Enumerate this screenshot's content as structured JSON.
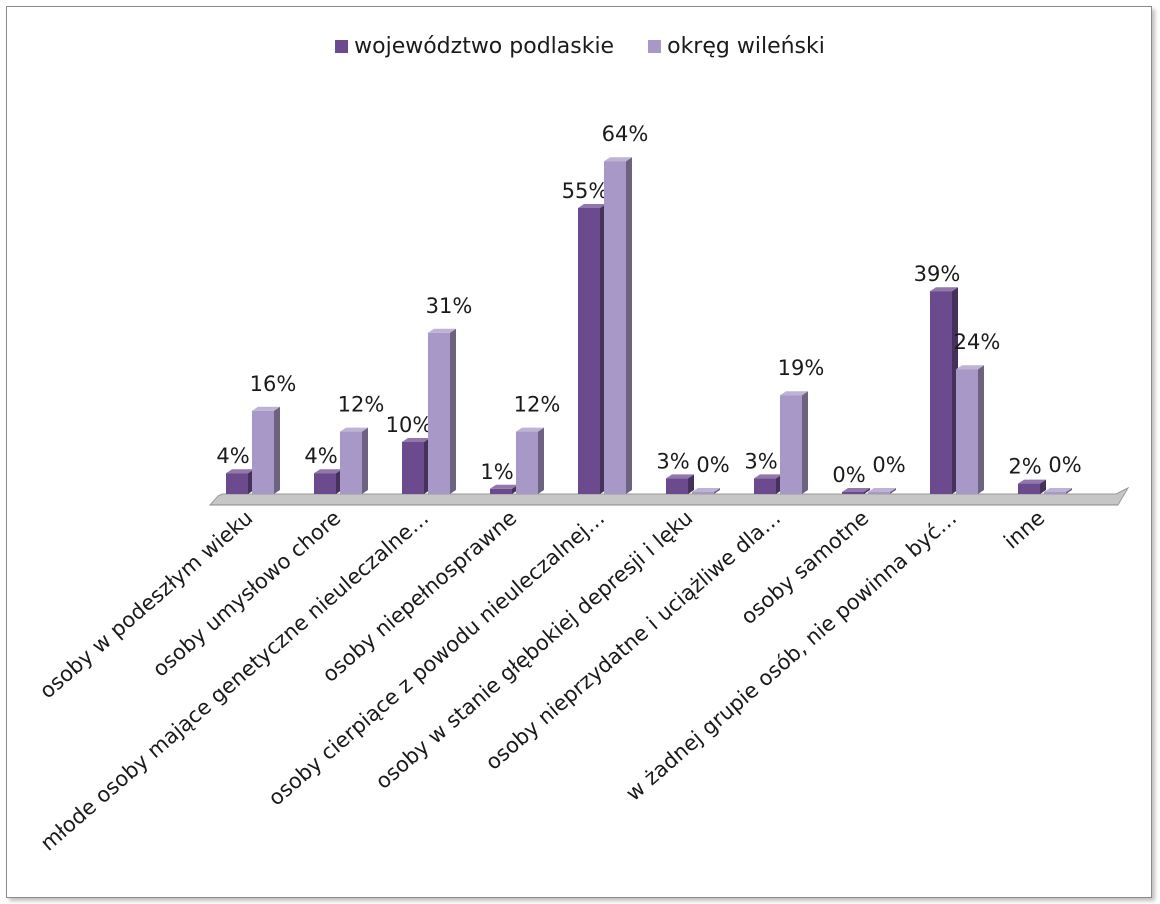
{
  "chart_data": {
    "type": "bar",
    "categories": [
      "osoby w podeszłym wieku",
      "osoby umysłowo chore",
      "młode osoby mające genetyczne nieuleczalne…",
      "osoby niepełnosprawne",
      "osoby cierpiące z powodu nieuleczalnej…",
      "osoby w stanie głębokiej depresji i lęku",
      "osoby nieprzydatne i uciążliwe dla…",
      "osoby samotne",
      "w żadnej grupie osób, nie powinna być…",
      "inne"
    ],
    "series": [
      {
        "name": "województwo podlaskie",
        "values": [
          4,
          4,
          10,
          1,
          55,
          3,
          3,
          0,
          39,
          2
        ],
        "labels": [
          "4%",
          "4%",
          "10%",
          "1%",
          "55%",
          "3%",
          "3%",
          "0%",
          "39%",
          "2%"
        ]
      },
      {
        "name": "okręg wileński",
        "values": [
          16,
          12,
          31,
          12,
          64,
          0,
          19,
          0,
          24,
          0
        ],
        "labels": [
          "16%",
          "12%",
          "31%",
          "12%",
          "64%",
          "0%",
          "19%",
          "0%",
          "24%",
          "0%"
        ]
      }
    ],
    "unit": "%",
    "ylim": [
      0,
      70
    ],
    "grid": false,
    "legend_position": "top",
    "colors": [
      "#6c4a8e",
      "#a898c7"
    ]
  }
}
